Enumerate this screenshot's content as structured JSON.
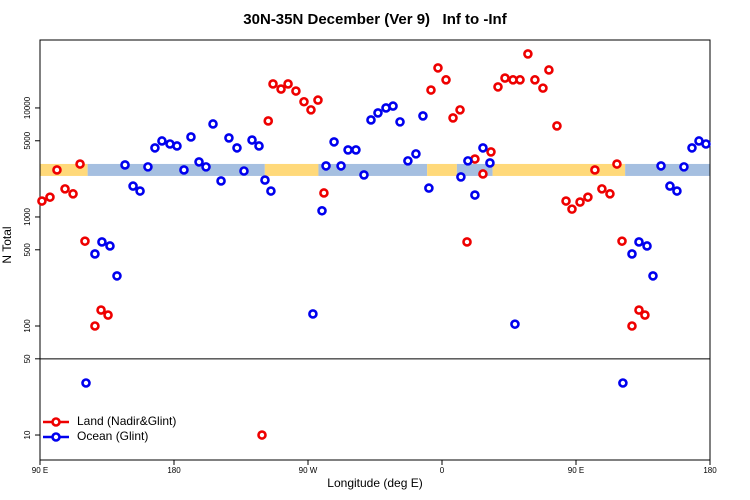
{
  "chart_data": {
    "type": "scatter",
    "title": "30N-35N December (Ver 9)   Inf to -Inf",
    "x_label": "Longitude (deg E)",
    "y_label": "N Total",
    "log_y": true,
    "xlim": [
      90,
      540
    ],
    "ylim": [
      5.9,
      42000
    ],
    "xticks": [
      {
        "value": 90,
        "label": "90 E"
      },
      180,
      {
        "value": 270,
        "label": "90 W"
      },
      {
        "value": 360,
        "label": "0"
      },
      {
        "value": 450,
        "label": "90 E"
      },
      {
        "value": 540,
        "label": "180"
      }
    ],
    "yticks": [
      10,
      50,
      100,
      500,
      1000,
      5000,
      10000
    ],
    "reference_line": 50,
    "legend": "lower left",
    "band": {
      "value": 2700,
      "segments": [
        {
          "x": [
            90,
            122
          ],
          "color": "#ffd97a"
        },
        {
          "x": [
            122,
            241
          ],
          "color": "#a5bfe0"
        },
        {
          "x": [
            241,
            277
          ],
          "color": "#ffd97a"
        },
        {
          "x": [
            277,
            350
          ],
          "color": "#a5bfe0"
        },
        {
          "x": [
            350,
            370
          ],
          "color": "#ffd97a"
        },
        {
          "x": [
            370,
            394
          ],
          "color": "#a5bfe0"
        },
        {
          "x": [
            394,
            483
          ],
          "color": "#ffd97a"
        },
        {
          "x": [
            483,
            540
          ],
          "color": "#a5bfe0"
        }
      ]
    },
    "series": [
      {
        "name": "Land (Nadir&Glint)",
        "color": "#ee0000",
        "x": [
          91.3,
          96.7,
          101.4,
          106.8,
          112.2,
          116.9,
          120.2,
          126.9,
          131.0,
          135.7,
          239.1,
          243.3,
          246.5,
          251.9,
          256.6,
          261.9,
          267.3,
          272.0,
          276.7,
          280.7,
          352.6,
          357.3,
          362.7,
          367.4,
          372.1,
          376.8,
          382.1,
          387.5,
          392.9,
          397.6,
          402.3,
          407.7,
          412.4,
          417.7,
          422.4,
          427.8,
          431.8,
          437.2,
          443.3,
          447.3,
          452.7,
          458.0,
          462.7,
          467.4,
          472.8,
          477.5,
          480.9,
          487.6,
          492.3,
          496.3
        ],
        "values": [
          1400,
          1520,
          2700,
          1810,
          1630,
          3060,
          600,
          100,
          140,
          126,
          10,
          7600,
          16600,
          14900,
          16600,
          14300,
          11400,
          9600,
          11800,
          1660,
          14600,
          23300,
          18100,
          8100,
          9600,
          590,
          3400,
          2480,
          3950,
          15600,
          18800,
          18100,
          18100,
          31300,
          18100,
          15200,
          22300,
          6840,
          1400,
          1180,
          1370,
          1520,
          2700,
          1810,
          1630,
          3060,
          600,
          100,
          140,
          126
        ]
      },
      {
        "name": "Ocean (Glint)",
        "color": "#0000ee",
        "x": [
          120.9,
          126.9,
          131.6,
          137.0,
          141.7,
          147.1,
          152.5,
          157.2,
          162.5,
          167.2,
          171.9,
          177.3,
          182.0,
          186.7,
          191.4,
          196.8,
          201.5,
          206.2,
          211.6,
          216.9,
          222.3,
          227.0,
          232.4,
          237.1,
          241.1,
          245.1,
          273.3,
          279.4,
          282.1,
          287.5,
          292.2,
          296.9,
          302.2,
          307.6,
          312.3,
          317.0,
          322.4,
          327.1,
          331.8,
          337.1,
          342.5,
          347.2,
          351.2,
          372.7,
          377.4,
          382.1,
          387.5,
          392.2,
          409.0,
          481.5,
          487.6,
          492.3,
          497.7,
          501.7,
          507.1,
          513.1,
          517.8,
          522.5,
          527.9,
          532.6,
          537.3
        ],
        "values": [
          30,
          458,
          590,
          542,
          288,
          3000,
          1920,
          1730,
          2880,
          4300,
          4980,
          4670,
          4480,
          2700,
          5420,
          3200,
          2880,
          7130,
          2140,
          5310,
          4300,
          2640,
          5080,
          4480,
          2180,
          1730,
          129,
          1140,
          2940,
          4880,
          2940,
          4120,
          4120,
          2430,
          7760,
          9000,
          10000,
          10400,
          7450,
          3270,
          3790,
          8450,
          1840,
          2330,
          3270,
          1590,
          4300,
          3130,
          104,
          30,
          458,
          590,
          542,
          288,
          2940,
          1920,
          1730,
          2880,
          4300,
          4980,
          4670
        ]
      }
    ]
  }
}
